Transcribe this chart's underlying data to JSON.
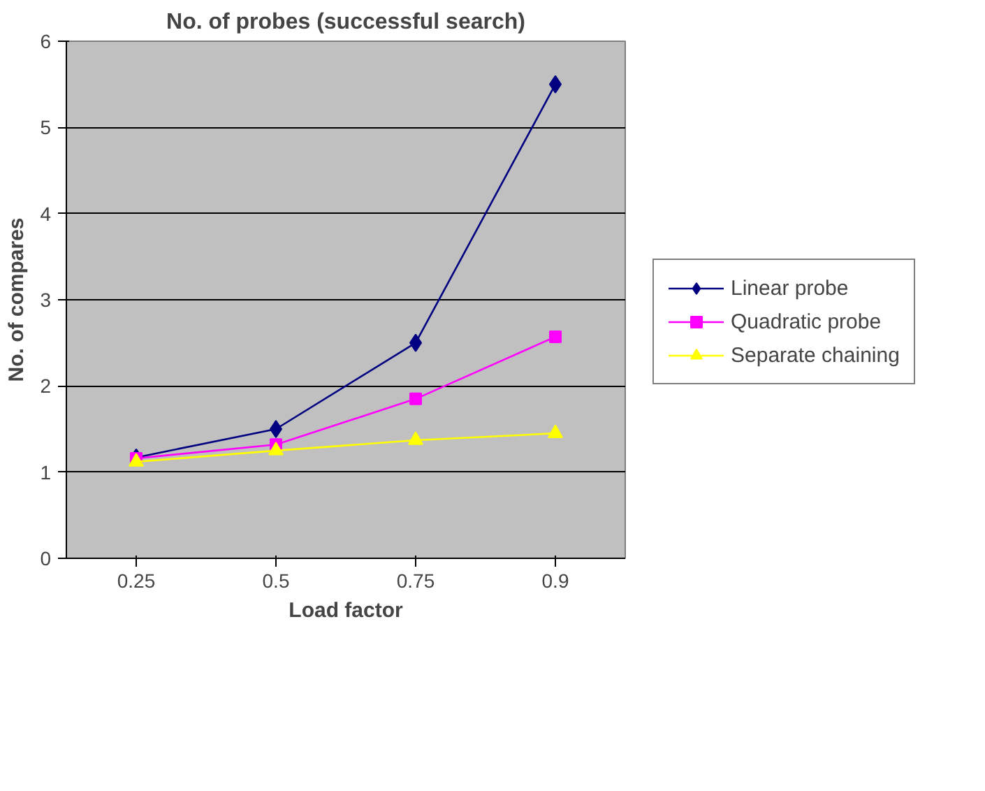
{
  "chart_data": {
    "type": "line",
    "title": "No. of probes (successful search)",
    "xlabel": "Load factor",
    "ylabel": "No. of compares",
    "categories": [
      "0.25",
      "0.5",
      "0.75",
      "0.9"
    ],
    "series": [
      {
        "name": "Linear probe",
        "color": "#000080",
        "marker": "diamond",
        "values": [
          1.17,
          1.5,
          2.5,
          5.5
        ]
      },
      {
        "name": "Quadratic probe",
        "color": "#ff00ff",
        "marker": "square",
        "values": [
          1.16,
          1.32,
          1.85,
          2.57
        ]
      },
      {
        "name": "Separate chaining",
        "color": "#ffff00",
        "marker": "triangle",
        "values": [
          1.12,
          1.25,
          1.37,
          1.45
        ]
      }
    ],
    "ylim": [
      0,
      6
    ],
    "yticks": [
      0,
      1,
      2,
      3,
      4,
      5,
      6
    ],
    "grid": "y",
    "legend": "right",
    "line_style": "solid"
  }
}
